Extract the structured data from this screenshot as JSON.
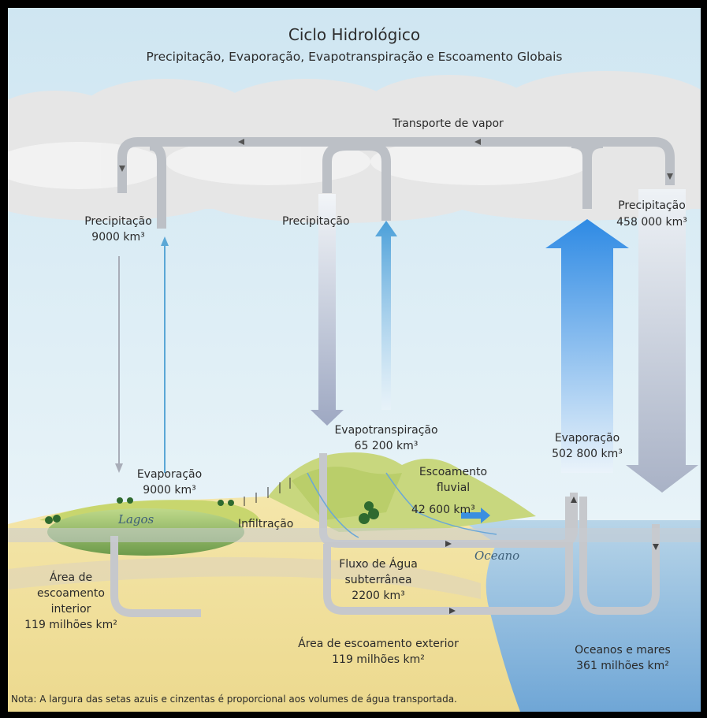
{
  "title": "Ciclo Hidrológico",
  "subtitle": "Precipitação, Evaporação, Evapotranspiração e Escoamento Globais",
  "labels": {
    "transport": "Transporte de vapor",
    "precip_left": "Precipitação",
    "precip_left_value": "9000 km³",
    "precip_mid": "Precipitação",
    "precip_right": "Precipitação",
    "precip_right_value": "458 000 km³",
    "evapotrans": "Evapotranspiração",
    "evapotrans_value": "65 200 km³",
    "evap_ocean": "Evaporação",
    "evap_ocean_value": "502 800 km³",
    "evap_lake": "Evaporação",
    "evap_lake_value": "9000 km³",
    "runoff_1": "Escoamento",
    "runoff_2": "fluvial",
    "runoff_value": "42 600 km³",
    "lakes": "Lagos",
    "infiltration": "Infiltração",
    "ocean": "Oceano",
    "groundwater_1": "Fluxo de Água",
    "groundwater_2": "subterrânea",
    "groundwater_value": "2200 km³",
    "interior_1": "Área de",
    "interior_2": "escoamento",
    "interior_3": "interior",
    "interior_value": "119 milhões km²",
    "exterior_1": "Área de escoamento exterior",
    "exterior_value": "119 milhões km²",
    "oceans_1": "Oceanos e mares",
    "oceans_value": "361 milhões km²",
    "note": "Nota: A largura das setas azuis e cinzentas é proporcional aos volumes de água transportada."
  },
  "colors": {
    "sky_top": "#d3e8f3",
    "sky_bottom": "#eef7fa",
    "cloud": "#e7e7e7",
    "gray_arrow": "#c3c6cc",
    "blue_arrow": "#3a8fe0",
    "ocean": "#9cc4e2",
    "land": "#f2e2a2",
    "hills": "#c9d77a"
  }
}
